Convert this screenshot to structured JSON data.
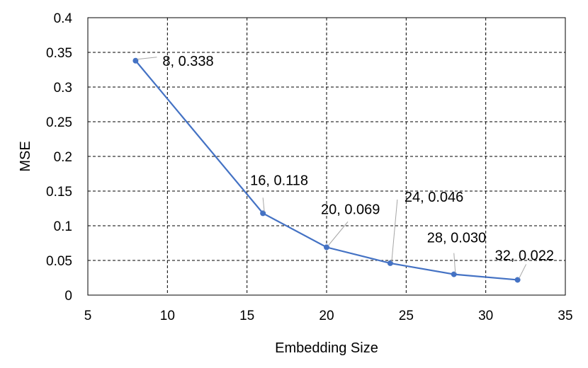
{
  "chart_data": {
    "type": "line",
    "title": "",
    "xlabel": "Embedding Size",
    "ylabel": "MSE",
    "xlim": [
      5,
      35
    ],
    "ylim": [
      0,
      0.4
    ],
    "x_ticks": [
      5,
      10,
      15,
      20,
      25,
      30,
      35
    ],
    "y_ticks": [
      "0",
      "0.05",
      "0.1",
      "0.15",
      "0.2",
      "0.25",
      "0.3",
      "0.35",
      "0.4"
    ],
    "grid": true,
    "legend": "none",
    "series": [
      {
        "color": "#4472C4",
        "x": [
          8,
          16,
          20,
          24,
          28,
          32
        ],
        "y": [
          0.338,
          0.118,
          0.069,
          0.046,
          0.03,
          0.022
        ],
        "data_labels": [
          "8, 0.338",
          "16, 0.118",
          "20, 0.069",
          "24, 0.046",
          "28, 0.030",
          "32, 0.022"
        ]
      }
    ]
  }
}
